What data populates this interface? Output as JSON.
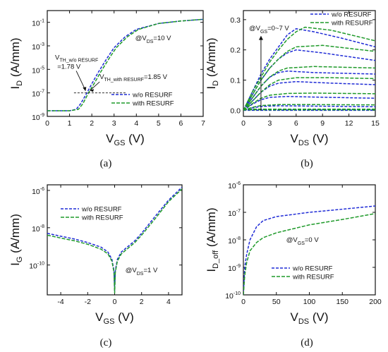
{
  "colors": {
    "blue": "#1f2bd6",
    "green": "#1f9a2a"
  },
  "legend": [
    "w/o RESURF",
    "with RESURF"
  ],
  "chart_data": [
    {
      "id": "a",
      "caption": "(a)",
      "type": "line",
      "xlabel": {
        "main": "V",
        "sub": "GS",
        "tail": " (V)"
      },
      "ylabel": {
        "main": "I",
        "sub": "D",
        "tail": " (A/mm)"
      },
      "xlim": [
        0,
        7
      ],
      "ylim_log10": [
        -9,
        0
      ],
      "xticks": [
        "0",
        "1",
        "2",
        "3",
        "4",
        "5",
        "6",
        "7"
      ],
      "yticks": [
        {
          "base": "10",
          "exp": "-9"
        },
        {
          "base": "10",
          "exp": "-7"
        },
        {
          "base": "10",
          "exp": "-5"
        },
        {
          "base": "10",
          "exp": "-3"
        },
        {
          "base": "10",
          "exp": "-1"
        }
      ],
      "condition": {
        "pre": "@V",
        "sub": "DS",
        "post": "=10 V"
      },
      "annotations": [
        {
          "pre": "V",
          "sub": "TH_w/o RESURF",
          "line2": "=1.78 V"
        },
        {
          "pre": "V",
          "sub": "TH_with RESURF",
          "post": "=1.85 V"
        }
      ],
      "threshold_current": 1e-07,
      "series": [
        {
          "name": "w/o RESURF",
          "x": [
            0,
            1.0,
            1.3,
            1.5,
            1.78,
            2.0,
            2.3,
            2.7,
            3.0,
            3.5,
            4.0,
            5.0,
            6.0,
            7.0
          ],
          "y": [
            3e-09,
            3e-09,
            4e-09,
            1.2e-08,
            1e-07,
            6e-07,
            6e-06,
            0.0001,
            0.0007,
            0.006,
            0.025,
            0.08,
            0.13,
            0.18
          ]
        },
        {
          "name": "with RESURF",
          "x": [
            0,
            1.0,
            1.4,
            1.6,
            1.85,
            2.1,
            2.4,
            2.8,
            3.1,
            3.6,
            4.1,
            5.0,
            6.0,
            7.0
          ],
          "y": [
            3e-09,
            3e-09,
            4e-09,
            1.2e-08,
            1e-07,
            6e-07,
            6e-06,
            0.0001,
            0.0007,
            0.006,
            0.025,
            0.08,
            0.13,
            0.18
          ]
        }
      ]
    },
    {
      "id": "b",
      "caption": "(b)",
      "type": "line",
      "xlabel": {
        "main": "V",
        "sub": "DS",
        "tail": " (V)"
      },
      "ylabel": {
        "main": "I",
        "sub": "D",
        "tail": " (A/mm)"
      },
      "xlim": [
        0,
        15
      ],
      "ylim": [
        -0.02,
        0.33
      ],
      "xticks": [
        "0",
        "3",
        "6",
        "9",
        "12",
        "15"
      ],
      "yticks": [
        "0.0",
        "0.1",
        "0.2",
        "0.3"
      ],
      "condition": {
        "pre": "@V",
        "sub": "GS",
        "post": "=0~7 V"
      },
      "series": [
        {
          "name": "w/o RESURF",
          "family": [
            {
              "vgs": "0 V",
              "x": [
                0,
                15
              ],
              "y": [
                0,
                0
              ]
            },
            {
              "vgs": "1 V",
              "x": [
                0,
                15
              ],
              "y": [
                0.001,
                0.001
              ]
            },
            {
              "vgs": "2 V",
              "x": [
                0,
                1,
                2,
                4,
                8,
                15
              ],
              "y": [
                0,
                0.008,
                0.013,
                0.015,
                0.014,
                0.012
              ]
            },
            {
              "vgs": "3 V",
              "x": [
                0,
                1,
                2,
                3,
                5,
                8,
                15
              ],
              "y": [
                0,
                0.02,
                0.035,
                0.043,
                0.046,
                0.044,
                0.04
              ]
            },
            {
              "vgs": "4 V",
              "x": [
                0,
                1,
                2,
                3,
                4,
                6,
                10,
                15
              ],
              "y": [
                0,
                0.03,
                0.06,
                0.08,
                0.09,
                0.095,
                0.09,
                0.085
              ]
            },
            {
              "vgs": "5 V",
              "x": [
                0,
                1,
                2,
                3,
                4,
                5,
                8,
                15
              ],
              "y": [
                0,
                0.04,
                0.08,
                0.11,
                0.125,
                0.13,
                0.125,
                0.12
              ]
            },
            {
              "vgs": "6 V",
              "x": [
                0,
                1,
                2,
                3,
                4,
                5,
                6,
                9,
                15
              ],
              "y": [
                0,
                0.05,
                0.1,
                0.14,
                0.17,
                0.19,
                0.2,
                0.19,
                0.165
              ]
            },
            {
              "vgs": "7 V",
              "x": [
                0,
                1,
                2,
                3,
                4,
                5,
                6,
                8,
                11,
                15
              ],
              "y": [
                0,
                0.06,
                0.12,
                0.17,
                0.21,
                0.25,
                0.27,
                0.26,
                0.24,
                0.21
              ]
            }
          ]
        },
        {
          "name": "with RESURF",
          "family": [
            {
              "vgs": "0 V",
              "x": [
                0,
                15
              ],
              "y": [
                0.002,
                0.002
              ]
            },
            {
              "vgs": "1 V",
              "x": [
                0,
                15
              ],
              "y": [
                0.004,
                0.004
              ]
            },
            {
              "vgs": "2 V",
              "x": [
                0,
                1,
                2,
                4,
                8,
                15
              ],
              "y": [
                0,
                0.01,
                0.016,
                0.019,
                0.019,
                0.018
              ]
            },
            {
              "vgs": "3 V",
              "x": [
                0,
                1,
                2,
                3,
                5,
                8,
                15
              ],
              "y": [
                0,
                0.022,
                0.04,
                0.05,
                0.056,
                0.057,
                0.055
              ]
            },
            {
              "vgs": "4 V",
              "x": [
                0,
                1,
                2,
                3,
                4,
                6,
                10,
                15
              ],
              "y": [
                0,
                0.03,
                0.06,
                0.085,
                0.1,
                0.108,
                0.108,
                0.105
              ]
            },
            {
              "vgs": "5 V",
              "x": [
                0,
                1,
                2,
                3,
                4,
                5,
                8,
                15
              ],
              "y": [
                0,
                0.04,
                0.08,
                0.11,
                0.13,
                0.14,
                0.145,
                0.14
              ]
            },
            {
              "vgs": "6 V",
              "x": [
                0,
                1,
                2,
                3,
                4,
                5,
                6,
                9,
                15
              ],
              "y": [
                0,
                0.05,
                0.1,
                0.14,
                0.17,
                0.195,
                0.21,
                0.215,
                0.195
              ]
            },
            {
              "vgs": "7 V",
              "x": [
                0,
                1,
                2,
                3,
                4,
                5,
                6,
                7,
                10,
                15
              ],
              "y": [
                0,
                0.06,
                0.11,
                0.16,
                0.2,
                0.235,
                0.26,
                0.275,
                0.265,
                0.23
              ]
            }
          ]
        }
      ]
    },
    {
      "id": "c",
      "caption": "(c)",
      "type": "line",
      "xlabel": {
        "main": "V",
        "sub": "GS",
        "tail": " (V)"
      },
      "ylabel": {
        "main": "I",
        "sub": "G",
        "tail": " (A/mm)"
      },
      "xlim": [
        -5,
        5
      ],
      "ylim_log10": [
        -11.6,
        -5.7
      ],
      "xticks": [
        "-4",
        "-2",
        "0",
        "2",
        "4"
      ],
      "yticks": [
        {
          "base": "10",
          "exp": "-10"
        },
        {
          "base": "10",
          "exp": "-8"
        },
        {
          "base": "10",
          "exp": "-6"
        }
      ],
      "condition": {
        "pre": "@V",
        "sub": "DS",
        "post": "=1 V"
      },
      "series": [
        {
          "name": "w/o RESURF",
          "x": [
            -5,
            -4,
            -3,
            -2,
            -1,
            -0.5,
            -0.2,
            -0.05,
            0,
            0.05,
            0.2,
            0.5,
            1,
            1.5,
            2,
            3,
            4,
            5
          ],
          "y": [
            5e-09,
            3.5e-09,
            2.5e-09,
            1.6e-09,
            9e-10,
            5e-10,
            2e-10,
            5e-11,
            4e-12,
            5e-11,
            2e-10,
            5e-10,
            1e-09,
            2e-09,
            5e-09,
            4e-08,
            3e-07,
            1.5e-06
          ]
        },
        {
          "name": "with RESURF",
          "x": [
            -5,
            -4,
            -3,
            -2,
            -1,
            -0.5,
            -0.2,
            -0.05,
            0,
            0.05,
            0.2,
            0.5,
            1,
            1.5,
            2,
            3,
            4,
            5
          ],
          "y": [
            4e-09,
            2.8e-09,
            2e-09,
            1.3e-09,
            7e-10,
            4e-10,
            1.6e-10,
            4e-11,
            3e-12,
            4e-11,
            1.6e-10,
            4e-10,
            8e-10,
            1.6e-09,
            4e-09,
            3e-08,
            2.5e-07,
            1.2e-06
          ]
        }
      ]
    },
    {
      "id": "d",
      "caption": "(d)",
      "type": "line",
      "xlabel": {
        "main": "V",
        "sub": "DS",
        "tail": " (V)"
      },
      "ylabel": {
        "main": "I",
        "sub": "D_off",
        "tail": " (A/mm)"
      },
      "xlim": [
        0,
        200
      ],
      "ylim_log10": [
        -10,
        -6
      ],
      "xticks": [
        "0",
        "50",
        "100",
        "150",
        "200"
      ],
      "yticks": [
        {
          "base": "10",
          "exp": "-10"
        },
        {
          "base": "10",
          "exp": "-9"
        },
        {
          "base": "10",
          "exp": "-8"
        },
        {
          "base": "10",
          "exp": "-7"
        },
        {
          "base": "10",
          "exp": "-6"
        }
      ],
      "condition": {
        "pre": "@V",
        "sub": "GS",
        "post": "=0 V"
      },
      "series": [
        {
          "name": "w/o RESURF",
          "x": [
            0,
            2,
            5,
            10,
            20,
            30,
            50,
            100,
            150,
            200
          ],
          "y": [
            1e-10,
            1e-09,
            3e-09,
            1e-08,
            3e-08,
            5e-08,
            7e-08,
            1e-07,
            1.3e-07,
            1.7e-07
          ]
        },
        {
          "name": "with RESURF",
          "x": [
            0,
            2,
            5,
            10,
            20,
            30,
            50,
            100,
            150,
            200
          ],
          "y": [
            1e-10,
            5e-10,
            1.5e-09,
            4e-09,
            8e-09,
            1.2e-08,
            1.8e-08,
            3.5e-08,
            5.5e-08,
            9e-08
          ]
        }
      ]
    }
  ]
}
